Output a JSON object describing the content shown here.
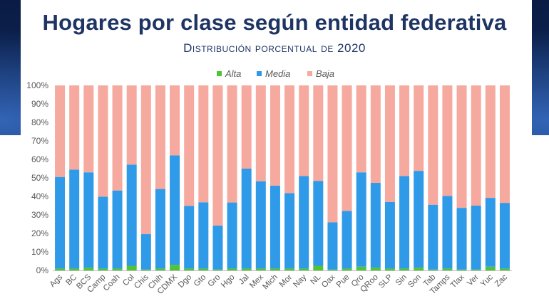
{
  "slide": {
    "title": "Hogares por clase según entidad federativa",
    "subtitle": "Distribución porcentual de 2020"
  },
  "colors": {
    "alta": "#4fc535",
    "media": "#2f9ae8",
    "baja": "#f6a99f",
    "title": "#1e3463"
  },
  "chart_data": {
    "type": "bar",
    "stacked": true,
    "categories": [
      "Ags",
      "BC",
      "BCS",
      "Camp",
      "Coah",
      "Col",
      "Chis",
      "Chih",
      "CDMX",
      "Dgo",
      "Gto",
      "Gro",
      "Hgo",
      "Jal",
      "Mex",
      "Mich",
      "Mor",
      "Nay",
      "NL",
      "Oax",
      "Pue",
      "Qro",
      "QRoo",
      "SLP",
      "Sin",
      "Son",
      "Tab",
      "Tamps",
      "Tlax",
      "Ver",
      "Yuc",
      "Zac"
    ],
    "series": [
      {
        "name": "Alta",
        "values": [
          1.0,
          1.0,
          1.5,
          1.0,
          1.0,
          2.5,
          0.5,
          1.0,
          3.0,
          1.0,
          1.0,
          0.5,
          1.0,
          1.0,
          1.0,
          1.0,
          1.0,
          1.0,
          2.5,
          0.5,
          1.0,
          2.0,
          1.5,
          1.0,
          1.0,
          1.5,
          0.5,
          1.0,
          0.5,
          0.5,
          2.0,
          1.0
        ]
      },
      {
        "name": "Media",
        "values": [
          49.5,
          53.5,
          51.5,
          38.8,
          42.2,
          54.7,
          19.1,
          43.0,
          59.2,
          33.9,
          35.8,
          23.7,
          35.7,
          54.0,
          47.2,
          44.8,
          40.8,
          50.0,
          45.9,
          25.5,
          31.1,
          51.0,
          45.8,
          36.0,
          50.0,
          52.3,
          35.0,
          39.2,
          33.3,
          34.5,
          37.2,
          35.5
        ]
      },
      {
        "name": "Baja",
        "values": [
          49.5,
          45.5,
          47.0,
          60.2,
          56.8,
          42.8,
          80.4,
          56.0,
          37.8,
          65.1,
          63.2,
          75.8,
          63.3,
          45.0,
          51.8,
          54.2,
          58.2,
          49.0,
          51.6,
          74.0,
          67.9,
          47.0,
          52.7,
          63.0,
          49.0,
          46.2,
          64.5,
          59.8,
          66.2,
          65.0,
          60.8,
          63.5
        ]
      }
    ],
    "ylim": [
      0,
      100
    ],
    "yticks": [
      "0%",
      "10%",
      "20%",
      "30%",
      "40%",
      "50%",
      "60%",
      "70%",
      "80%",
      "90%",
      "100%"
    ],
    "legend": "top-center",
    "grid": false
  }
}
